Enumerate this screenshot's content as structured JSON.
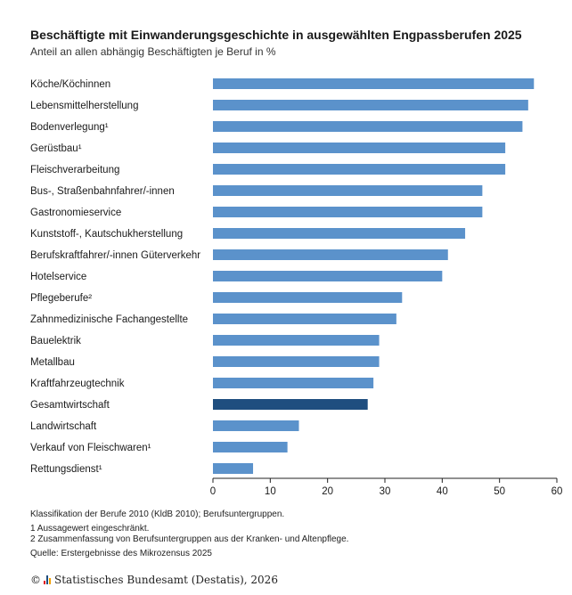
{
  "title": "Beschäftigte mit Einwanderungsgeschichte in ausgewählten Engpassberufen 2025",
  "subtitle": "Anteil an allen abhängig Beschäftigten je Beruf in %",
  "colors": {
    "bar": "#5b92cb",
    "highlight": "#1f4e7f",
    "axis": "#222222"
  },
  "chart_data": {
    "type": "bar",
    "orientation": "horizontal",
    "categories": [
      "Köche/Köchinnen",
      "Lebensmittelherstellung",
      "Bodenverlegung¹",
      "Gerüstbau¹",
      "Fleischverarbeitung",
      "Bus-, Straßenbahnfahrer/-innen",
      "Gastronomieservice",
      "Kunststoff-, Kautschukherstellung",
      "Berufskraftfahrer/-innen Güterverkehr",
      "Hotelservice",
      "Pflegeberufe²",
      "Zahnmedizinische Fachangestellte",
      "Bauelektrik",
      "Metallbau",
      "Kraftfahrzeugtechnik",
      "Gesamtwirtschaft",
      "Landwirtschaft",
      "Verkauf von Fleischwaren¹",
      "Rettungsdienst¹"
    ],
    "values": [
      56,
      55,
      54,
      51,
      51,
      47,
      47,
      44,
      41,
      40,
      33,
      32,
      29,
      29,
      28,
      27,
      15,
      13,
      7
    ],
    "highlight_category": "Gesamtwirtschaft",
    "xlim": [
      0,
      60
    ],
    "xticks": [
      "0",
      "10",
      "20",
      "30",
      "40",
      "50",
      "60"
    ],
    "grid": false,
    "legend": "none"
  },
  "footnotes": [
    "Klassifikation der Berufe 2010 (KldB 2010); Berufsuntergruppen.",
    "1 Aussagewert eingeschränkt.",
    "2 Zusammenfassung von Berufsuntergruppen aus der Kranken- und Altenpflege.",
    "Quelle: Erstergebnisse des Mikrozensus 2025"
  ],
  "copyright": {
    "symbol": "©",
    "text": "Statistisches Bundesamt (Destatis), 2026",
    "logo_colors": [
      "#e2001a",
      "#1f4e7f",
      "#f3a000"
    ]
  }
}
